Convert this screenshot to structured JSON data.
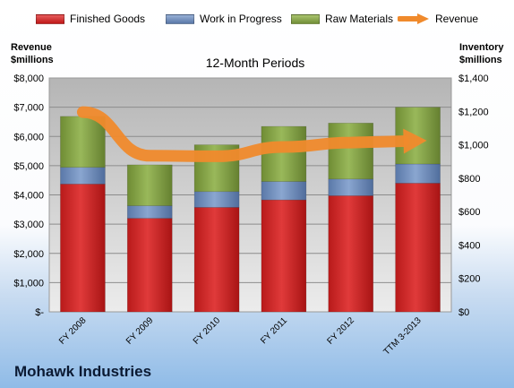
{
  "company": "Mohawk Industries",
  "legend": {
    "finished": "Finished Goods",
    "wip": "Work in Progress",
    "raw": "Raw Materials",
    "revenue": "Revenue"
  },
  "colors": {
    "finished": "#d42626",
    "wip": "#6f8fbd",
    "raw": "#88a84a",
    "revenue": "#f08a2c"
  },
  "chart_data": {
    "type": "bar",
    "subtype": "stacked bar with line overlay",
    "title": "12-Month Periods",
    "categories": [
      "FY 2008",
      "FY 2009",
      "FY 2010",
      "FY 2011",
      "FY 2012",
      "TTM 3-2013"
    ],
    "left_axis": {
      "title_line1": "Revenue",
      "title_line2": "$millions",
      "ylim": [
        0,
        8000
      ],
      "ticks": [
        "$-",
        "$1,000",
        "$2,000",
        "$3,000",
        "$4,000",
        "$5,000",
        "$6,000",
        "$7,000",
        "$8,000"
      ]
    },
    "right_axis": {
      "title_line1": "Inventory",
      "title_line2": "$millions",
      "ylim": [
        0,
        1400
      ],
      "ticks": [
        "$0",
        "$200",
        "$400",
        "$600",
        "$800",
        "$1,000",
        "$1,200",
        "$1,400"
      ]
    },
    "series": [
      {
        "name": "Finished Goods",
        "axis": "right",
        "values": [
          765,
          560,
          625,
          670,
          695,
          770
        ]
      },
      {
        "name": "Work in Progress",
        "axis": "right",
        "values": [
          100,
          75,
          95,
          110,
          100,
          115
        ]
      },
      {
        "name": "Raw Materials",
        "axis": "right",
        "values": [
          305,
          245,
          280,
          330,
          335,
          340
        ]
      },
      {
        "name": "Revenue",
        "axis": "left",
        "type": "line",
        "values": [
          6830,
          5340,
          5320,
          5640,
          5790,
          5850
        ]
      }
    ],
    "grid": true,
    "legend_position": "top"
  }
}
